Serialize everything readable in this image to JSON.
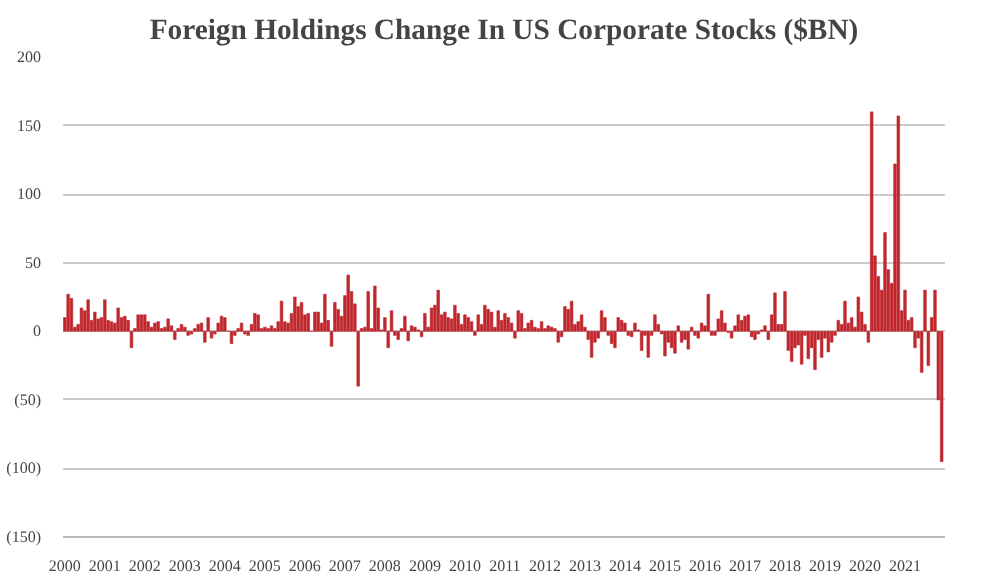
{
  "chart_data": {
    "type": "bar",
    "title": "Foreign Holdings Change In US Corporate Stocks ($BN)",
    "x": [
      "2000-01",
      "2000-02",
      "2000-03",
      "2000-04",
      "2000-05",
      "2000-06",
      "2000-07",
      "2000-08",
      "2000-09",
      "2000-10",
      "2000-11",
      "2000-12",
      "2001-01",
      "2001-02",
      "2001-03",
      "2001-04",
      "2001-05",
      "2001-06",
      "2001-07",
      "2001-08",
      "2001-09",
      "2001-10",
      "2001-11",
      "2001-12",
      "2002-01",
      "2002-02",
      "2002-03",
      "2002-04",
      "2002-05",
      "2002-06",
      "2002-07",
      "2002-08",
      "2002-09",
      "2002-10",
      "2002-11",
      "2002-12",
      "2003-01",
      "2003-02",
      "2003-03",
      "2003-04",
      "2003-05",
      "2003-06",
      "2003-07",
      "2003-08",
      "2003-09",
      "2003-10",
      "2003-11",
      "2003-12",
      "2004-01",
      "2004-02",
      "2004-03",
      "2004-04",
      "2004-05",
      "2004-06",
      "2004-07",
      "2004-08",
      "2004-09",
      "2004-10",
      "2004-11",
      "2004-12",
      "2005-01",
      "2005-02",
      "2005-03",
      "2005-04",
      "2005-05",
      "2005-06",
      "2005-07",
      "2005-08",
      "2005-09",
      "2005-10",
      "2005-11",
      "2005-12",
      "2006-01",
      "2006-02",
      "2006-03",
      "2006-04",
      "2006-05",
      "2006-06",
      "2006-07",
      "2006-08",
      "2006-09",
      "2006-10",
      "2006-11",
      "2006-12",
      "2007-01",
      "2007-02",
      "2007-03",
      "2007-04",
      "2007-05",
      "2007-06",
      "2007-07",
      "2007-08",
      "2007-09",
      "2007-10",
      "2007-11",
      "2007-12",
      "2008-01",
      "2008-02",
      "2008-03",
      "2008-04",
      "2008-05",
      "2008-06",
      "2008-07",
      "2008-08",
      "2008-09",
      "2008-10",
      "2008-11",
      "2008-12",
      "2009-01",
      "2009-02",
      "2009-03",
      "2009-04",
      "2009-05",
      "2009-06",
      "2009-07",
      "2009-08",
      "2009-09",
      "2009-10",
      "2009-11",
      "2009-12",
      "2010-01",
      "2010-02",
      "2010-03",
      "2010-04",
      "2010-05",
      "2010-06",
      "2010-07",
      "2010-08",
      "2010-09",
      "2010-10",
      "2010-11",
      "2010-12",
      "2011-01",
      "2011-02",
      "2011-03",
      "2011-04",
      "2011-05",
      "2011-06",
      "2011-07",
      "2011-08",
      "2011-09",
      "2011-10",
      "2011-11",
      "2011-12",
      "2012-01",
      "2012-02",
      "2012-03",
      "2012-04",
      "2012-05",
      "2012-06",
      "2012-07",
      "2012-08",
      "2012-09",
      "2012-10",
      "2012-11",
      "2012-12",
      "2013-01",
      "2013-02",
      "2013-03",
      "2013-04",
      "2013-05",
      "2013-06",
      "2013-07",
      "2013-08",
      "2013-09",
      "2013-10",
      "2013-11",
      "2013-12",
      "2014-01",
      "2014-02",
      "2014-03",
      "2014-04",
      "2014-05",
      "2014-06",
      "2014-07",
      "2014-08",
      "2014-09",
      "2014-10",
      "2014-11",
      "2014-12",
      "2015-01",
      "2015-02",
      "2015-03",
      "2015-04",
      "2015-05",
      "2015-06",
      "2015-07",
      "2015-08",
      "2015-09",
      "2015-10",
      "2015-11",
      "2015-12",
      "2016-01",
      "2016-02",
      "2016-03",
      "2016-04",
      "2016-05",
      "2016-06",
      "2016-07",
      "2016-08",
      "2016-09",
      "2016-10",
      "2016-11",
      "2016-12",
      "2017-01",
      "2017-02",
      "2017-03",
      "2017-04",
      "2017-05",
      "2017-06",
      "2017-07",
      "2017-08",
      "2017-09",
      "2017-10",
      "2017-11",
      "2017-12",
      "2018-01",
      "2018-02",
      "2018-03",
      "2018-04",
      "2018-05",
      "2018-06",
      "2018-07",
      "2018-08",
      "2018-09",
      "2018-10",
      "2018-11",
      "2018-12",
      "2019-01",
      "2019-02",
      "2019-03",
      "2019-04",
      "2019-05",
      "2019-06",
      "2019-07",
      "2019-08",
      "2019-09",
      "2019-10",
      "2019-11",
      "2019-12",
      "2020-01",
      "2020-02",
      "2020-03",
      "2020-04",
      "2020-05",
      "2020-06",
      "2020-07",
      "2020-08",
      "2020-09",
      "2020-10",
      "2020-11",
      "2020-12",
      "2021-01",
      "2021-02",
      "2021-03",
      "2021-04",
      "2021-05",
      "2021-06",
      "2021-07",
      "2021-08",
      "2021-09",
      "2021-10",
      "2021-11",
      "2021-12"
    ],
    "values": [
      10,
      27,
      24,
      3,
      5,
      17,
      15,
      23,
      8,
      14,
      9,
      10,
      23,
      8,
      7,
      6,
      17,
      10,
      11,
      8,
      -12,
      2,
      12,
      12,
      12,
      7,
      3,
      6,
      7,
      2,
      3,
      9,
      4,
      -6,
      2,
      5,
      3,
      -3,
      -2,
      2,
      5,
      6,
      -8,
      10,
      -5,
      -2,
      6,
      11,
      10,
      0,
      -9,
      -3,
      2,
      6,
      -2,
      -3,
      5,
      13,
      12,
      2,
      3,
      2,
      4,
      2,
      7,
      22,
      7,
      6,
      13,
      25,
      18,
      21,
      12,
      13,
      0,
      14,
      14,
      6,
      27,
      8,
      -11,
      21,
      16,
      11,
      26,
      41,
      29,
      20,
      -40,
      2,
      3,
      29,
      2,
      33,
      17,
      1,
      10,
      -12,
      15,
      -3,
      -6,
      2,
      11,
      -7,
      4,
      3,
      1,
      -4,
      13,
      3,
      17,
      19,
      30,
      12,
      14,
      10,
      9,
      19,
      13,
      5,
      12,
      10,
      7,
      -3,
      12,
      5,
      19,
      16,
      14,
      3,
      15,
      8,
      13,
      10,
      6,
      -5,
      15,
      13,
      2,
      6,
      8,
      3,
      2,
      7,
      2,
      4,
      3,
      2,
      -8,
      -4,
      18,
      16,
      22,
      5,
      7,
      12,
      3,
      -6,
      -19,
      -8,
      -5,
      15,
      10,
      -3,
      -9,
      -12,
      10,
      8,
      6,
      -3,
      -4,
      6,
      1,
      -14,
      -3,
      -19,
      -3,
      12,
      5,
      -2,
      -18,
      -8,
      -12,
      -16,
      4,
      -8,
      -6,
      -13,
      3,
      -3,
      -5,
      6,
      4,
      27,
      -3,
      -3,
      9,
      15,
      6,
      -1,
      -5,
      4,
      12,
      8,
      11,
      12,
      -4,
      -6,
      -2,
      1,
      4,
      -6,
      12,
      28,
      5,
      5,
      29,
      -14,
      -22,
      -12,
      -10,
      -24,
      -3,
      -20,
      -12,
      -28,
      -6,
      -19,
      -5,
      -15,
      -8,
      -3,
      8,
      5,
      22,
      6,
      10,
      3,
      25,
      14,
      5,
      -8,
      160,
      55,
      40,
      30,
      72,
      45,
      35,
      122,
      157,
      15,
      30,
      8,
      10,
      -12,
      -5,
      -30,
      30,
      -25,
      10,
      30,
      -50,
      -95
    ],
    "color": "#c0272d",
    "xlim": [
      "1999-12-15",
      "2022-01"
    ],
    "xticks": [
      "2000",
      "2001",
      "2002",
      "2003",
      "2004",
      "2005",
      "2006",
      "2007",
      "2008",
      "2009",
      "2010",
      "2011",
      "2012",
      "2013",
      "2014",
      "2015",
      "2016",
      "2017",
      "2018",
      "2019",
      "2020",
      "2021"
    ],
    "ylim": [
      -150,
      200
    ],
    "yticks": [
      200,
      150,
      100,
      50,
      0,
      {
        "value": -50,
        "label": "(50)"
      },
      {
        "value": -100,
        "label": "(100)"
      },
      {
        "value": -150,
        "label": "(150)"
      }
    ],
    "grid": "y"
  }
}
